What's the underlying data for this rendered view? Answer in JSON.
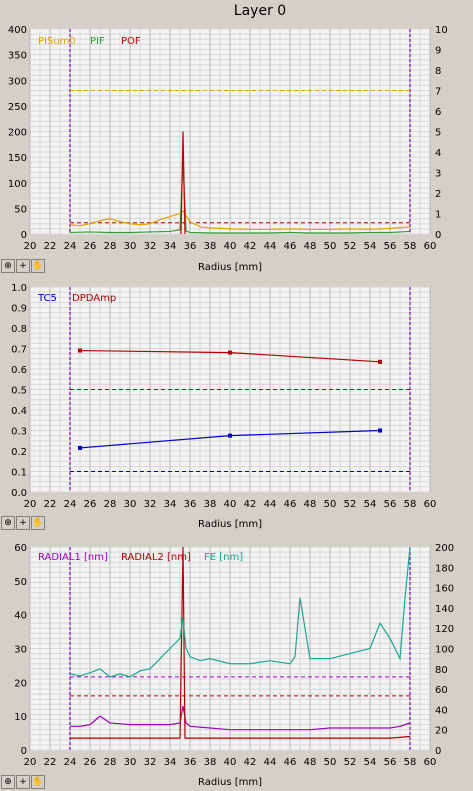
{
  "window": {
    "title": "Layer 0"
  },
  "toolbar": {
    "icons": [
      "zoom-icon",
      "plus-icon",
      "hand-icon"
    ]
  },
  "chart_data": [
    {
      "type": "line",
      "xlabel": "Radius [mm]",
      "xlim": [
        20,
        60
      ],
      "xticks": [
        20,
        22,
        24,
        26,
        28,
        30,
        32,
        34,
        36,
        38,
        40,
        42,
        44,
        46,
        48,
        50,
        52,
        54,
        56,
        58,
        60
      ],
      "ylim": [
        0,
        400
      ],
      "yticks": [
        0,
        50,
        100,
        150,
        200,
        250,
        300,
        350,
        400
      ],
      "y2lim": [
        0,
        10
      ],
      "y2ticks": [
        0,
        1,
        2,
        3,
        4,
        5,
        6,
        7,
        8,
        9,
        10
      ],
      "vlines": [
        24,
        58
      ],
      "legend": [
        "PISum0",
        "PIF",
        "POF"
      ],
      "series": [
        {
          "name": "PISum0",
          "color": "#e8a000",
          "axis": "left",
          "x": [
            24,
            25,
            26,
            27,
            28,
            29,
            30,
            31,
            32,
            33,
            34,
            35,
            35.3,
            36,
            37,
            38,
            40,
            42,
            44,
            46,
            48,
            50,
            52,
            54,
            56,
            58
          ],
          "y": [
            18,
            16,
            20,
            26,
            30,
            24,
            20,
            18,
            20,
            28,
            34,
            40,
            45,
            24,
            14,
            12,
            10,
            9,
            9,
            10,
            9,
            9,
            10,
            9,
            11,
            14
          ]
        },
        {
          "name": "PIF",
          "color": "#2e9e2e",
          "axis": "left",
          "x": [
            24,
            26,
            28,
            30,
            32,
            34,
            35,
            35.3,
            35.6,
            36,
            38,
            40,
            42,
            44,
            46,
            48,
            50,
            52,
            54,
            56,
            58
          ],
          "y": [
            3,
            4,
            3,
            3,
            4,
            5,
            8,
            140,
            6,
            3,
            2,
            2,
            2,
            2,
            3,
            2,
            2,
            2,
            3,
            3,
            5
          ]
        },
        {
          "name": "POF",
          "color": "#c00000",
          "axis": "left",
          "x": [
            35.1,
            35.3,
            35.5
          ],
          "y": [
            0,
            200,
            0
          ]
        }
      ],
      "hlines": [
        {
          "y": 280,
          "color": "#e8a000",
          "style": "dashed"
        },
        {
          "y": 22,
          "color": "#c00000",
          "style": "dashed"
        }
      ]
    },
    {
      "type": "line",
      "xlabel": "Radius [mm]",
      "xlim": [
        20,
        60
      ],
      "xticks": [
        20,
        22,
        24,
        26,
        28,
        30,
        32,
        34,
        36,
        38,
        40,
        42,
        44,
        46,
        48,
        50,
        52,
        54,
        56,
        58,
        60
      ],
      "ylim": [
        0,
        1
      ],
      "yticks": [
        "0.0",
        "0.1",
        "0.2",
        "0.3",
        "0.4",
        "0.5",
        "0.6",
        "0.7",
        "0.8",
        "0.9",
        "1.0"
      ],
      "vlines": [
        24,
        58
      ],
      "legend": [
        "TC5",
        "DPDAmp"
      ],
      "series": [
        {
          "name": "TC5",
          "color": "#0000c8",
          "x": [
            25,
            40,
            55
          ],
          "y": [
            0.215,
            0.275,
            0.3
          ]
        },
        {
          "name": "DPDAmp",
          "color": "#b00000",
          "x": [
            25,
            40,
            55
          ],
          "y": [
            0.69,
            0.68,
            0.635
          ]
        }
      ],
      "hlines": [
        {
          "y": 0.5,
          "color": "#b00000",
          "style": "dashed"
        },
        {
          "y": 0.1,
          "color": "#0000c8",
          "style": "dashed"
        }
      ]
    },
    {
      "type": "line",
      "xlabel": "Radius [mm]",
      "xlim": [
        20,
        60
      ],
      "xticks": [
        20,
        22,
        24,
        26,
        28,
        30,
        32,
        34,
        36,
        38,
        40,
        42,
        44,
        46,
        48,
        50,
        52,
        54,
        56,
        58,
        60
      ],
      "ylim": [
        0,
        60
      ],
      "yticks": [
        0,
        10,
        20,
        30,
        40,
        50,
        60
      ],
      "y2lim": [
        0,
        200
      ],
      "y2ticks": [
        0,
        20,
        40,
        60,
        80,
        100,
        120,
        140,
        160,
        180,
        200
      ],
      "vlines": [
        24,
        58
      ],
      "legend": [
        "RADIAL1 [nm]",
        "RADIAL2 [nm]",
        "FE [nm]"
      ],
      "series": [
        {
          "name": "RADIAL1 [nm]",
          "color": "#a000c0",
          "axis": "left",
          "x": [
            24,
            25,
            26,
            27,
            28,
            30,
            32,
            34,
            35,
            35.3,
            35.6,
            36,
            38,
            40,
            42,
            44,
            46,
            48,
            50,
            52,
            54,
            56,
            57,
            58
          ],
          "y": [
            7,
            7,
            7.5,
            10,
            8,
            7.5,
            7.5,
            7.5,
            8,
            13,
            8,
            7,
            6.5,
            6,
            6,
            6,
            6,
            6,
            6.5,
            6.5,
            6.5,
            6.5,
            7,
            8
          ]
        },
        {
          "name": "RADIAL2 [nm]",
          "color": "#b00000",
          "axis": "left",
          "x": [
            24,
            26,
            28,
            30,
            32,
            34,
            35,
            35.3,
            35.5,
            36,
            40,
            44,
            48,
            52,
            56,
            58
          ],
          "y": [
            3.5,
            3.5,
            3.5,
            3.5,
            3.5,
            3.5,
            3.5,
            60,
            3.5,
            3.5,
            3.5,
            3.5,
            3.5,
            3.5,
            3.5,
            4
          ]
        },
        {
          "name": "FE [nm]",
          "color": "#1aa890",
          "axis": "right",
          "x": [
            24,
            25,
            26,
            27,
            28,
            29,
            30,
            31,
            32,
            33,
            34,
            35,
            35.3,
            35.6,
            36,
            37,
            38,
            40,
            42,
            44,
            46,
            46.5,
            47,
            48,
            50,
            52,
            54,
            55,
            56,
            57,
            57.5,
            58
          ],
          "y": [
            75,
            73,
            76,
            80,
            72,
            75,
            72,
            78,
            80,
            90,
            100,
            110,
            130,
            100,
            92,
            88,
            90,
            85,
            85,
            88,
            85,
            92,
            150,
            90,
            90,
            95,
            100,
            125,
            110,
            90,
            150,
            200
          ]
        }
      ],
      "hlines": [
        {
          "y": 72,
          "color": "#a000c0",
          "style": "dashed",
          "axis": "right"
        },
        {
          "y": 16,
          "color": "#b00000",
          "style": "dashed",
          "axis": "left"
        }
      ]
    }
  ]
}
